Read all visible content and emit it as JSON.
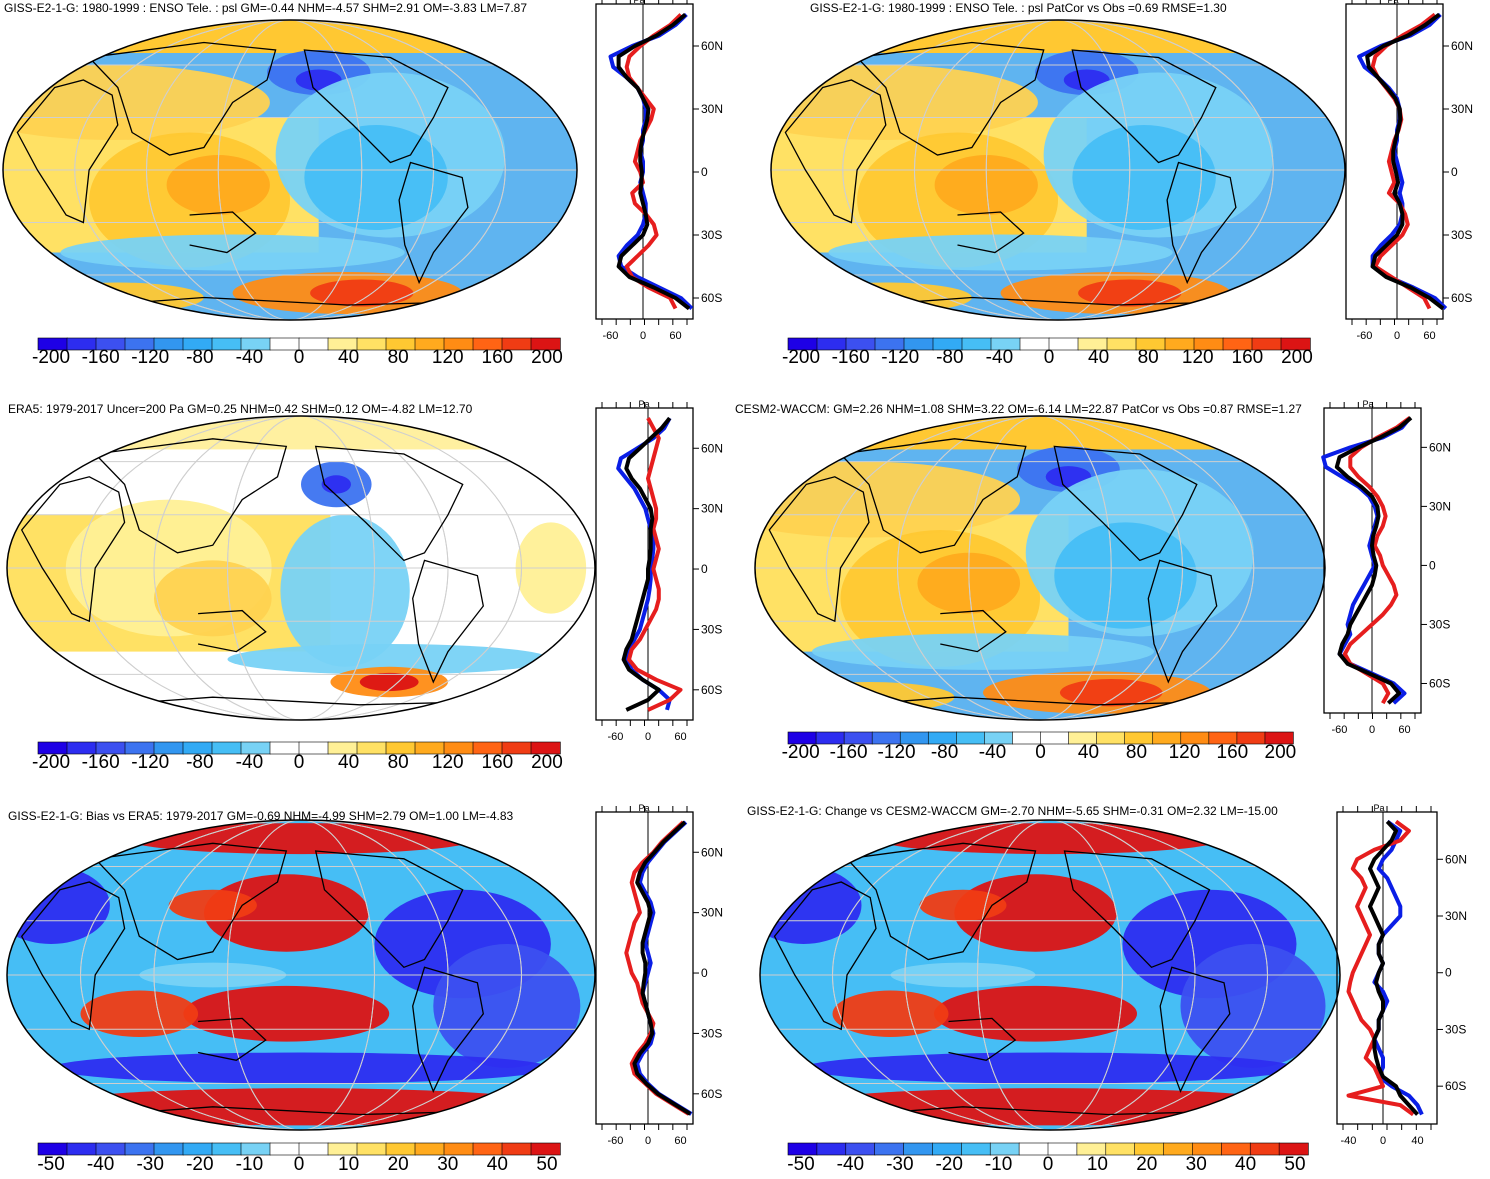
{
  "chart_data": [
    {
      "type": "map",
      "title": "GISS-E2-1-G: 1980-1999 : ENSO Tele. : psl GM=-0.44 NHM=-4.57 SHM=2.91 OM=-3.83 LM=7.87",
      "colorbar": {
        "ticks": [
          "-200",
          "-160",
          "-120",
          "-80",
          "-40",
          "0",
          "40",
          "80",
          "120",
          "160",
          "200"
        ]
      },
      "profile": {
        "units": "Pa",
        "xticks": [
          "-60",
          "0",
          "60"
        ],
        "yticks": [
          "60N",
          "30N",
          "0",
          "30S",
          "60S"
        ],
        "lat": [
          75,
          70,
          65,
          60,
          55,
          50,
          45,
          40,
          35,
          30,
          25,
          20,
          15,
          10,
          5,
          0,
          -5,
          -10,
          -15,
          -20,
          -25,
          -30,
          -35,
          -40,
          -45,
          -50,
          -55,
          -60,
          -65
        ],
        "series": [
          {
            "name": "blue",
            "color": "#0a1ee6",
            "values": [
              80,
              60,
              30,
              -20,
              -60,
              -55,
              -30,
              -10,
              0,
              5,
              5,
              0,
              0,
              -5,
              0,
              0,
              -5,
              0,
              5,
              5,
              0,
              -10,
              -30,
              -45,
              -40,
              -10,
              30,
              70,
              90
            ]
          },
          {
            "name": "red",
            "color": "#e61e1e",
            "values": [
              70,
              50,
              20,
              -5,
              -25,
              -30,
              -25,
              -10,
              5,
              20,
              15,
              5,
              -5,
              -10,
              -15,
              -5,
              0,
              -20,
              -15,
              5,
              20,
              25,
              10,
              -10,
              -30,
              -20,
              10,
              50,
              60
            ]
          },
          {
            "name": "black",
            "color": "#000000",
            "values": [
              78,
              55,
              25,
              -15,
              -45,
              -45,
              -30,
              -10,
              0,
              10,
              8,
              3,
              -2,
              -5,
              -5,
              -2,
              -3,
              -5,
              0,
              5,
              8,
              0,
              -20,
              -40,
              -45,
              -25,
              20,
              60,
              85
            ]
          }
        ]
      }
    },
    {
      "type": "map",
      "title": "GISS-E2-1-G: 1980-1999 : ENSO Tele. : psl PatCor vs Obs =0.69 RMSE=1.30",
      "colorbar": {
        "ticks": [
          "-200",
          "-160",
          "-120",
          "-80",
          "-40",
          "0",
          "40",
          "80",
          "120",
          "160",
          "200"
        ]
      },
      "profile": {
        "units": "Pa",
        "xticks": [
          "-60",
          "0",
          "60"
        ],
        "yticks": [
          "60N",
          "30N",
          "0",
          "30S",
          "60S"
        ],
        "lat": [
          75,
          70,
          65,
          60,
          55,
          50,
          45,
          40,
          35,
          30,
          25,
          20,
          15,
          10,
          5,
          0,
          -5,
          -10,
          -15,
          -20,
          -25,
          -30,
          -35,
          -40,
          -45,
          -50,
          -55,
          -60,
          -65
        ],
        "series": [
          {
            "name": "blue",
            "color": "#0a1ee6",
            "values": [
              80,
              60,
              25,
              -30,
              -70,
              -60,
              -35,
              -15,
              0,
              5,
              5,
              0,
              0,
              -5,
              0,
              5,
              10,
              5,
              10,
              10,
              5,
              -10,
              -30,
              -45,
              -45,
              -15,
              30,
              70,
              90
            ]
          },
          {
            "name": "red",
            "color": "#e61e1e",
            "values": [
              70,
              45,
              10,
              -20,
              -40,
              -45,
              -35,
              -20,
              -5,
              5,
              8,
              3,
              -5,
              -10,
              -15,
              -10,
              -5,
              -15,
              5,
              15,
              20,
              10,
              -10,
              -30,
              -40,
              -10,
              20,
              50,
              60
            ]
          },
          {
            "name": "black",
            "color": "#000000",
            "values": [
              78,
              52,
              20,
              -25,
              -55,
              -52,
              -35,
              -18,
              -3,
              5,
              6,
              2,
              -3,
              -7,
              -7,
              -2,
              2,
              -5,
              5,
              10,
              10,
              0,
              -20,
              -40,
              -45,
              -20,
              25,
              60,
              85
            ]
          }
        ]
      }
    },
    {
      "type": "map",
      "title": "ERA5: 1979-2017 Uncer=200 Pa GM=0.25 NHM=0.42 SHM=0.12 OM=-4.82 LM=12.70",
      "colorbar": {
        "ticks": [
          "-200",
          "-160",
          "-120",
          "-80",
          "-40",
          "0",
          "40",
          "80",
          "120",
          "160",
          "200"
        ]
      },
      "profile": {
        "units": "Pa",
        "xticks": [
          "-60",
          "0",
          "60"
        ],
        "yticks": [
          "60N",
          "30N",
          "0",
          "30S",
          "60S"
        ],
        "lat": [
          75,
          70,
          65,
          60,
          55,
          50,
          45,
          40,
          35,
          30,
          25,
          20,
          15,
          10,
          5,
          0,
          -5,
          -10,
          -15,
          -20,
          -25,
          -30,
          -35,
          -40,
          -45,
          -50,
          -55,
          -60,
          -65,
          -70
        ],
        "series": [
          {
            "name": "blue",
            "color": "#0a1ee6",
            "values": [
              40,
              30,
              10,
              -20,
              -50,
              -55,
              -40,
              -25,
              -15,
              -5,
              0,
              5,
              10,
              10,
              8,
              5,
              5,
              3,
              0,
              -5,
              -10,
              -15,
              -25,
              -35,
              -40,
              -30,
              -10,
              20,
              40,
              35
            ]
          },
          {
            "name": "red",
            "color": "#e61e1e",
            "values": [
              0,
              10,
              20,
              15,
              10,
              5,
              0,
              5,
              10,
              15,
              15,
              10,
              15,
              20,
              15,
              10,
              15,
              20,
              20,
              15,
              5,
              -5,
              -15,
              -30,
              -35,
              -20,
              15,
              60,
              40,
              0
            ]
          },
          {
            "name": "black",
            "color": "#000000",
            "values": [
              40,
              25,
              5,
              -15,
              -35,
              -40,
              -30,
              -15,
              -5,
              5,
              8,
              5,
              5,
              5,
              3,
              0,
              0,
              -5,
              -10,
              -15,
              -20,
              -25,
              -30,
              -40,
              -45,
              -35,
              -10,
              20,
              0,
              -40
            ]
          }
        ]
      }
    },
    {
      "type": "map",
      "title": "CESM2-WACCM: GM=2.26 NHM=1.08 SHM=3.22 OM=-6.14 LM=22.87 PatCor vs Obs =0.87 RMSE=1.27",
      "colorbar": {
        "ticks": [
          "-200",
          "-160",
          "-120",
          "-80",
          "-40",
          "0",
          "40",
          "80",
          "120",
          "160",
          "200"
        ]
      },
      "profile": {
        "units": "Pa",
        "xticks": [
          "-60",
          "0",
          "60"
        ],
        "yticks": [
          "60N",
          "30N",
          "0",
          "30S",
          "60S"
        ],
        "lat": [
          75,
          70,
          65,
          60,
          55,
          50,
          45,
          40,
          35,
          30,
          25,
          20,
          15,
          10,
          5,
          0,
          -5,
          -10,
          -15,
          -20,
          -25,
          -30,
          -35,
          -40,
          -45,
          -50,
          -55,
          -60,
          -65,
          -70
        ],
        "series": [
          {
            "name": "blue",
            "color": "#0a1ee6",
            "values": [
              70,
              55,
              20,
              -40,
              -90,
              -85,
              -55,
              -25,
              -5,
              5,
              10,
              5,
              0,
              -5,
              0,
              5,
              -5,
              -15,
              -25,
              -35,
              -40,
              -45,
              -40,
              -50,
              -60,
              -40,
              0,
              40,
              60,
              40
            ]
          },
          {
            "name": "red",
            "color": "#e61e1e",
            "values": [
              70,
              45,
              10,
              -20,
              -40,
              -40,
              -25,
              -5,
              10,
              20,
              25,
              20,
              10,
              5,
              15,
              20,
              30,
              40,
              45,
              35,
              20,
              0,
              -20,
              -40,
              -50,
              -40,
              -10,
              20,
              30,
              20
            ]
          },
          {
            "name": "black",
            "color": "#000000",
            "values": [
              72,
              50,
              15,
              -25,
              -60,
              -65,
              -45,
              -20,
              0,
              10,
              12,
              8,
              2,
              0,
              3,
              8,
              5,
              0,
              -10,
              -20,
              -30,
              -40,
              -45,
              -55,
              -60,
              -45,
              -5,
              35,
              50,
              30
            ]
          }
        ]
      }
    },
    {
      "type": "map",
      "title": "GISS-E2-1-G: Bias vs ERA5: 1979-2017 GM=-0.69 NHM=-4.99 SHM=2.79 OM=1.00 LM=-4.83",
      "colorbar": {
        "ticks": [
          "-50",
          "-40",
          "-30",
          "-20",
          "-10",
          "0",
          "10",
          "20",
          "30",
          "40",
          "50"
        ]
      },
      "profile": {
        "units": "Pa",
        "xticks": [
          "-60",
          "0",
          "60"
        ],
        "yticks": [
          "60N",
          "30N",
          "0",
          "30S",
          "60S"
        ],
        "lat": [
          75,
          70,
          65,
          60,
          55,
          50,
          45,
          40,
          35,
          30,
          25,
          20,
          15,
          10,
          5,
          0,
          -5,
          -10,
          -15,
          -20,
          -25,
          -30,
          -35,
          -40,
          -45,
          -50,
          -55,
          -60,
          -65,
          -70
        ],
        "series": [
          {
            "name": "blue",
            "color": "#0a1ee6",
            "values": [
              70,
              50,
              30,
              15,
              0,
              -10,
              -15,
              -5,
              5,
              10,
              5,
              0,
              -5,
              0,
              5,
              0,
              -5,
              -10,
              -5,
              0,
              5,
              10,
              5,
              -10,
              -20,
              -15,
              0,
              20,
              50,
              80
            ]
          },
          {
            "name": "red",
            "color": "#e61e1e",
            "values": [
              65,
              45,
              25,
              10,
              -10,
              -25,
              -30,
              -25,
              -20,
              -15,
              -25,
              -30,
              -35,
              -40,
              -35,
              -30,
              -20,
              -15,
              -10,
              0,
              10,
              5,
              -5,
              -20,
              -30,
              -25,
              -5,
              15,
              45,
              75
            ]
          },
          {
            "name": "black",
            "color": "#000000",
            "values": [
              68,
              48,
              28,
              12,
              -5,
              -15,
              -20,
              -10,
              0,
              5,
              0,
              -5,
              -10,
              -10,
              -5,
              -5,
              -8,
              -10,
              -5,
              0,
              5,
              8,
              0,
              -15,
              -25,
              -20,
              -3,
              18,
              48,
              78
            ]
          }
        ]
      }
    },
    {
      "type": "map",
      "title": "GISS-E2-1-G: Change vs CESM2-WACCM GM=-2.70 NHM=-5.65 SHM=-0.31 OM=2.32 LM=-15.00",
      "colorbar": {
        "ticks": [
          "-50",
          "-40",
          "-30",
          "-20",
          "-10",
          "0",
          "10",
          "20",
          "30",
          "40",
          "50"
        ]
      },
      "profile": {
        "units": "Pa",
        "xticks": [
          "-40",
          "0",
          "40"
        ],
        "yticks": [
          "60N",
          "30N",
          "0",
          "30S",
          "60S"
        ],
        "lat": [
          80,
          75,
          70,
          65,
          60,
          55,
          50,
          45,
          40,
          35,
          30,
          25,
          20,
          15,
          10,
          5,
          0,
          -5,
          -10,
          -15,
          -20,
          -25,
          -30,
          -35,
          -40,
          -45,
          -50,
          -55,
          -60,
          -65,
          -70,
          -75
        ],
        "series": [
          {
            "name": "blue",
            "color": "#0a1ee6",
            "values": [
              5,
              20,
              15,
              10,
              0,
              -5,
              5,
              10,
              15,
              20,
              20,
              10,
              0,
              -5,
              -5,
              0,
              -5,
              -10,
              0,
              5,
              0,
              -5,
              -5,
              -10,
              -5,
              0,
              0,
              -5,
              10,
              30,
              40,
              45
            ]
          },
          {
            "name": "red",
            "color": "#e61e1e",
            "values": [
              15,
              30,
              20,
              -10,
              -30,
              -35,
              -25,
              -20,
              -25,
              -30,
              -25,
              -20,
              -15,
              -20,
              -25,
              -30,
              -35,
              -38,
              -40,
              -35,
              -30,
              -25,
              -15,
              -10,
              -15,
              -20,
              -10,
              -5,
              0,
              -40,
              20,
              35
            ]
          },
          {
            "name": "black",
            "color": "#000000",
            "values": [
              5,
              15,
              10,
              0,
              -10,
              -15,
              -10,
              -5,
              -10,
              -15,
              -10,
              -5,
              0,
              -5,
              -5,
              0,
              -5,
              -8,
              -5,
              0,
              0,
              -5,
              -5,
              -10,
              -10,
              -8,
              -5,
              0,
              15,
              20,
              30,
              40
            ]
          }
        ]
      }
    }
  ]
}
